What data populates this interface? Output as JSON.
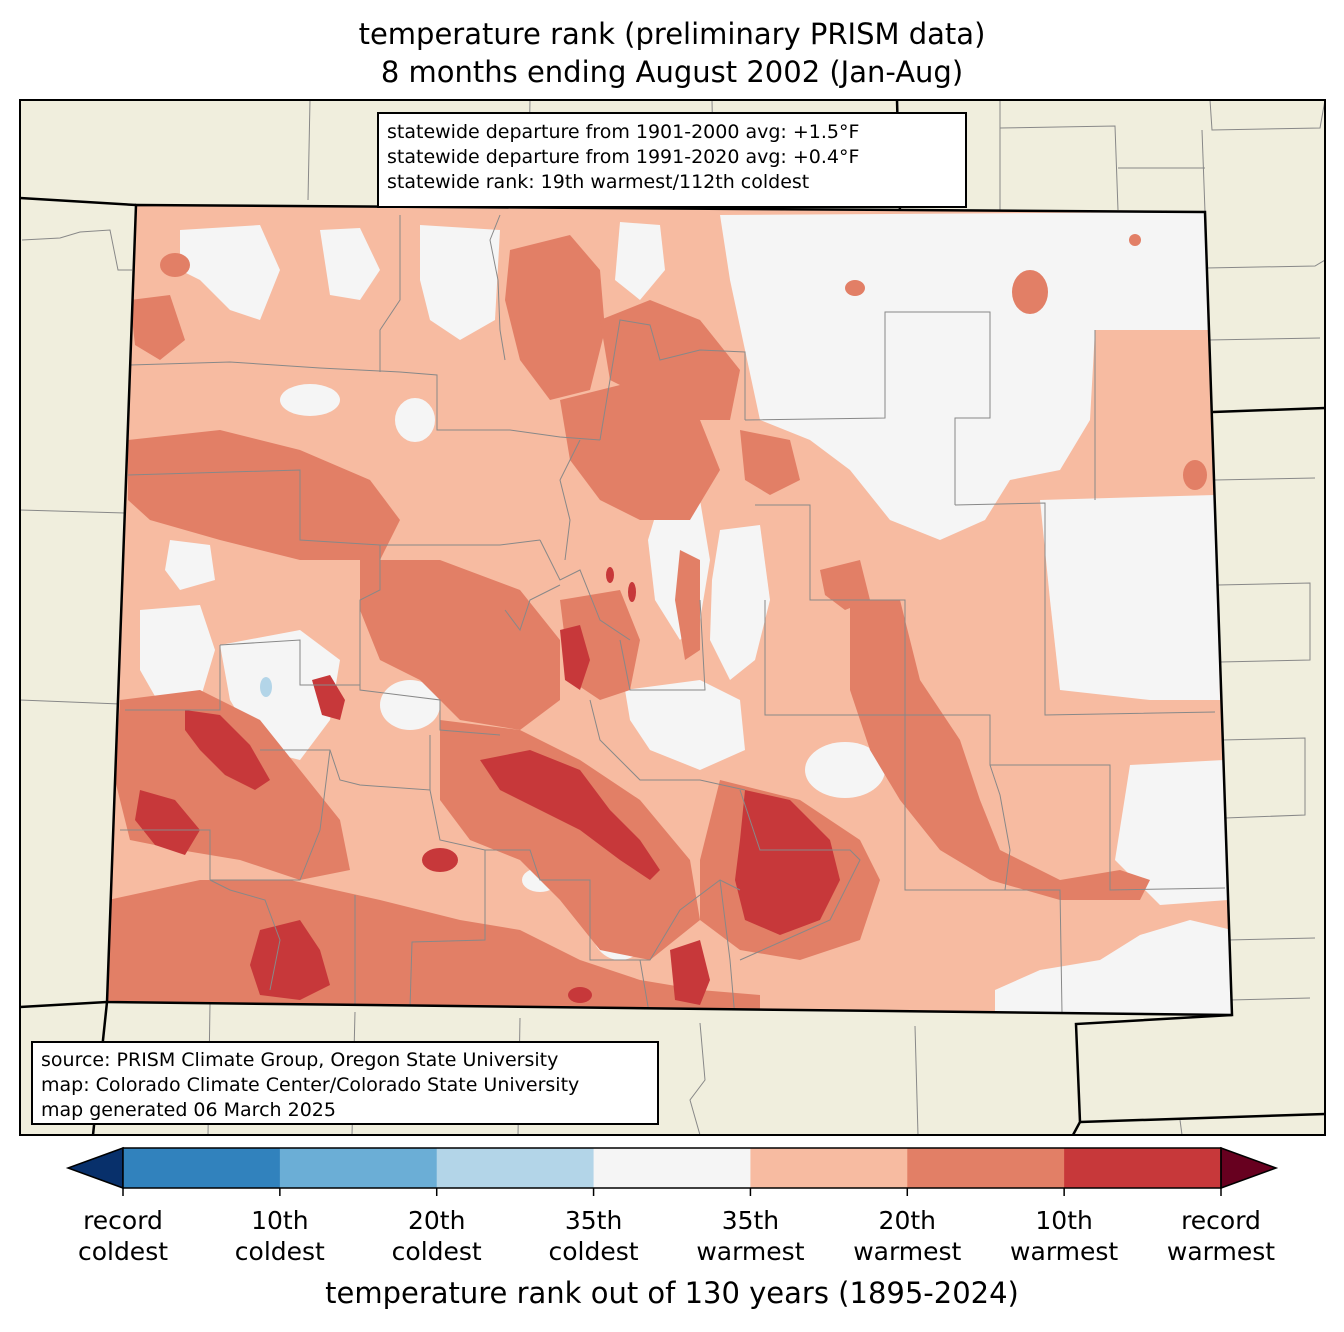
{
  "title": {
    "line1": "temperature rank (preliminary PRISM data)",
    "line2": "8 months ending August 2002 (Jan-Aug)"
  },
  "stats": {
    "line1": "statewide departure from 1901-2000 avg: +1.5°F",
    "line2": "statewide departure from 1991-2020 avg: +0.4°F",
    "line3": "statewide rank: 19th warmest/112th coldest"
  },
  "source": {
    "line1": "source: PRISM Climate Group, Oregon State University",
    "line2": "map: Colorado Climate Center/Colorado State University",
    "line3": "map generated 06 March 2025"
  },
  "colorbar": {
    "label": "temperature rank out of 130 years (1895-2024)",
    "colors": [
      "#08306b",
      "#3182bd",
      "#6baed6",
      "#b3d5e8",
      "#f5f5f5",
      "#f7bba1",
      "#e27f66",
      "#c7383a",
      "#67001f"
    ],
    "ticks": [
      {
        "line1": "record",
        "line2": "coldest"
      },
      {
        "line1": "10th",
        "line2": "coldest"
      },
      {
        "line1": "20th",
        "line2": "coldest"
      },
      {
        "line1": "35th",
        "line2": "coldest"
      },
      {
        "line1": "35th",
        "line2": "warmest"
      },
      {
        "line1": "20th",
        "line2": "warmest"
      },
      {
        "line1": "10th",
        "line2": "warmest"
      },
      {
        "line1": "record",
        "line2": "warmest"
      }
    ]
  },
  "map_colors": {
    "land_outside": "#f0eedd",
    "state_border": "#000000",
    "county_border": "#888888"
  }
}
